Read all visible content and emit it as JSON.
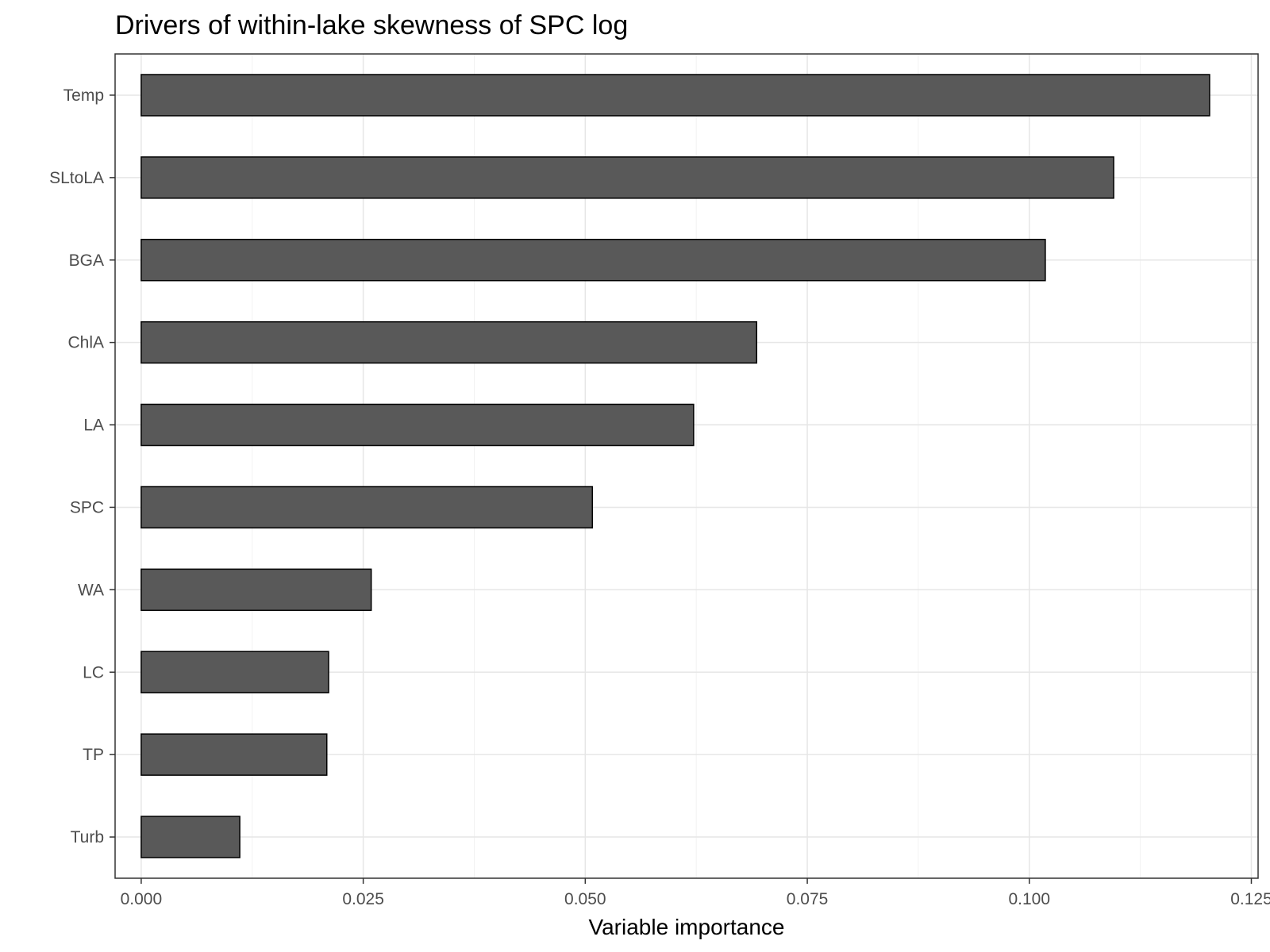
{
  "chart_data": {
    "type": "bar",
    "orientation": "horizontal",
    "title": "Drivers of within-lake skewness of SPC log",
    "xlabel": "Variable importance",
    "ylabel": "",
    "categories": [
      "Temp",
      "SLtoLA",
      "BGA",
      "ChlA",
      "LA",
      "SPC",
      "WA",
      "LC",
      "TP",
      "Turb"
    ],
    "values": [
      0.1203,
      0.1095,
      0.1018,
      0.0693,
      0.0622,
      0.0508,
      0.0259,
      0.0211,
      0.0209,
      0.0111
    ],
    "xlim": [
      -0.00294,
      0.12576
    ],
    "x_ticks": [
      0.0,
      0.025,
      0.05,
      0.075,
      0.1,
      0.125
    ],
    "x_tick_labels": [
      "0.000",
      "0.025",
      "0.050",
      "0.075",
      "0.100",
      "0.125"
    ],
    "grid": true,
    "legend": "none",
    "colors": {
      "bar_fill": "#595959",
      "bar_stroke": "#000000",
      "grid_major": "#e6e6e6",
      "grid_minor": "#f2f2f2",
      "panel_border": "#333333"
    }
  }
}
